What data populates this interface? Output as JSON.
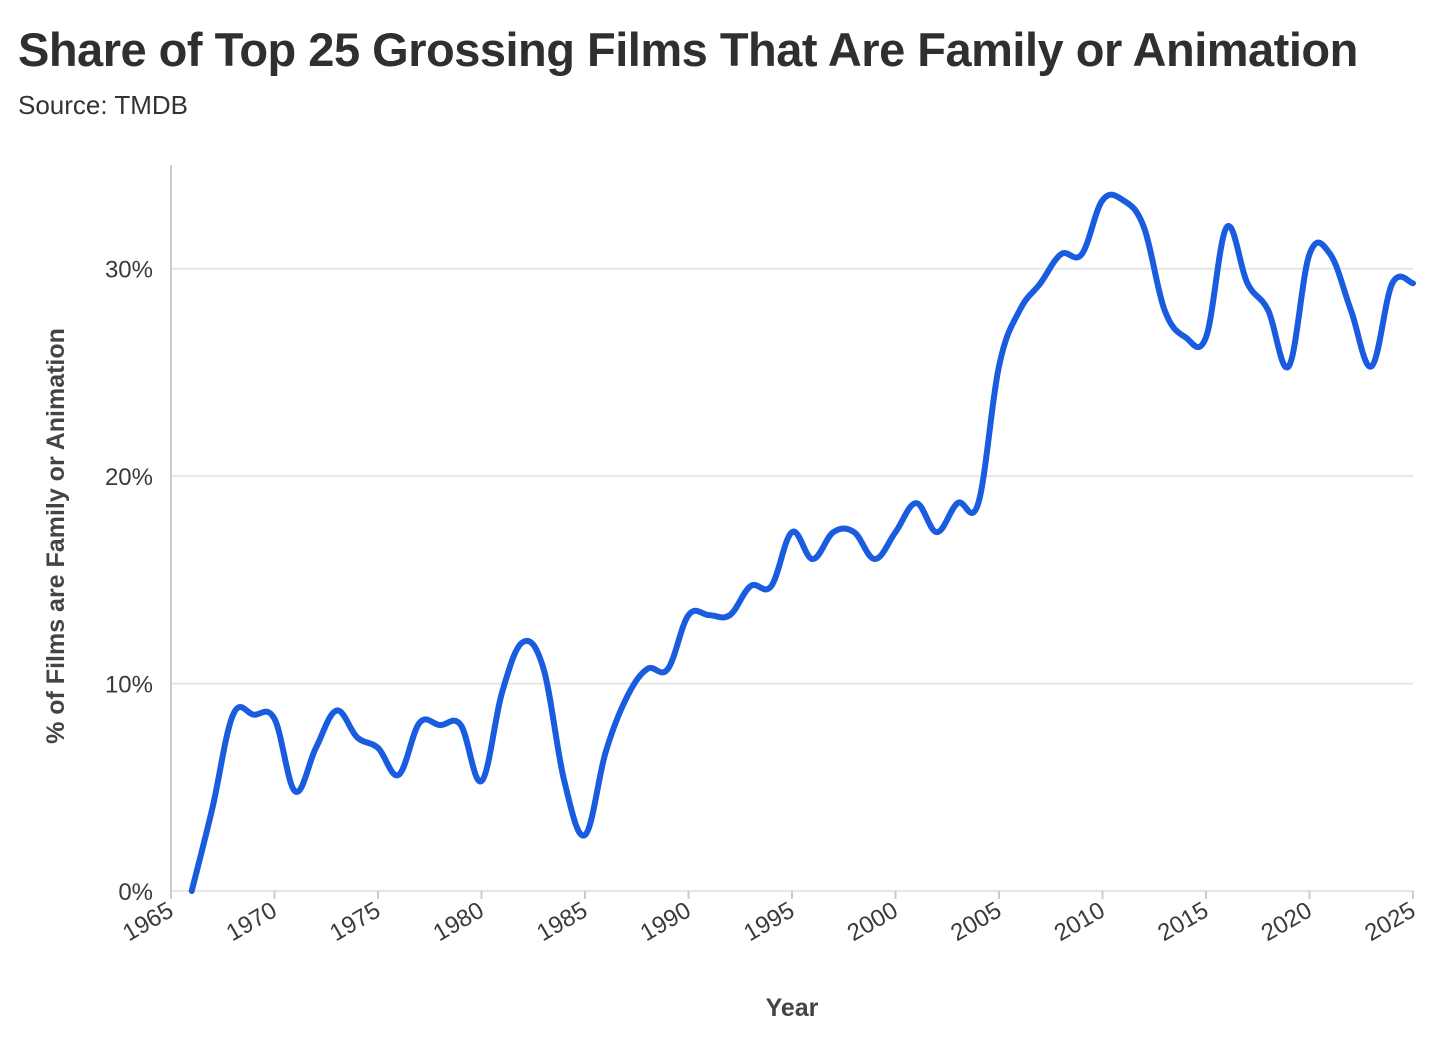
{
  "title": "Share of Top 25 Grossing Films That Are Family or Animation",
  "subtitle": "Source: TMDB",
  "colors": {
    "line": "#1a5ce0",
    "grid": "#e6e6e6",
    "axis": "#cccccc"
  },
  "chart_data": {
    "type": "line",
    "title": "Share of Top 25 Grossing Films That Are Family or Animation",
    "subtitle": "Source: TMDB",
    "xlabel": "Year",
    "ylabel": "% of Films are Family or Animation",
    "xlim": [
      1965,
      2025
    ],
    "ylim": [
      0,
      35
    ],
    "x_ticks": [
      1965,
      1970,
      1975,
      1980,
      1985,
      1990,
      1995,
      2000,
      2005,
      2010,
      2015,
      2020,
      2025
    ],
    "x_tick_labels": [
      "1965",
      "1970",
      "1975",
      "1980",
      "1985",
      "1990",
      "1995",
      "2000",
      "2005",
      "2010",
      "2015",
      "2020",
      "2025"
    ],
    "y_ticks": [
      0,
      10,
      20,
      30
    ],
    "y_tick_labels": [
      "0%",
      "10%",
      "20%",
      "30%"
    ],
    "grid": "horizontal",
    "series": [
      {
        "x": [
          1966,
          1967,
          1968,
          1969,
          1970,
          1971,
          1972,
          1973,
          1974,
          1975,
          1976,
          1977,
          1978,
          1979,
          1980,
          1981,
          1982,
          1983,
          1984,
          1985,
          1986,
          1987,
          1988,
          1989,
          1990,
          1991,
          1992,
          1993,
          1994,
          1995,
          1996,
          1997,
          1998,
          1999,
          2000,
          2001,
          2002,
          2003,
          2004,
          2005,
          2006,
          2007,
          2008,
          2009,
          2010,
          2011,
          2012,
          2013,
          2014,
          2015,
          2016,
          2017,
          2018,
          2019,
          2020,
          2021,
          2022,
          2023,
          2024,
          2025
        ],
        "values": [
          0,
          4,
          8.5,
          8.5,
          8.3,
          4.8,
          6.9,
          8.7,
          7.4,
          6.9,
          5.6,
          8.1,
          8.0,
          8.0,
          5.3,
          9.6,
          12.0,
          10.7,
          5.3,
          2.7,
          6.7,
          9.3,
          10.7,
          10.7,
          13.3,
          13.3,
          13.3,
          14.7,
          14.7,
          17.3,
          16.0,
          17.3,
          17.3,
          16.0,
          17.3,
          18.7,
          17.3,
          18.7,
          18.7,
          25.3,
          28.0,
          29.3,
          30.7,
          30.7,
          33.3,
          33.3,
          32.0,
          28.0,
          26.7,
          26.7,
          32.0,
          29.3,
          28.0,
          25.3,
          30.7,
          30.7,
          28.0,
          25.3,
          29.3,
          29.3
        ]
      }
    ]
  }
}
